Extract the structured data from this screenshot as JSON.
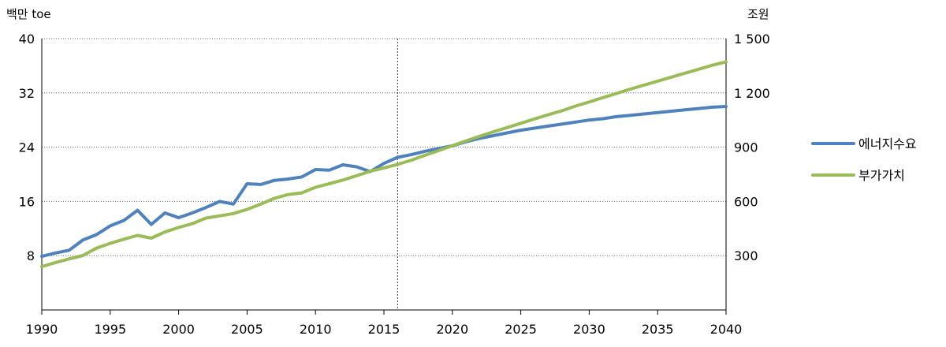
{
  "chart_data": {
    "type": "line",
    "title": "",
    "left_axis": {
      "label": "백만 toe",
      "ylim": [
        0,
        40
      ],
      "ticks": [
        8,
        16,
        24,
        32,
        40
      ]
    },
    "right_axis": {
      "label": "조원",
      "ylim": [
        0,
        1500
      ],
      "ticks": [
        "300",
        "600",
        "900",
        "1 200",
        "1 500"
      ]
    },
    "x_axis": {
      "xlim": [
        1990,
        2040
      ],
      "ticks": [
        1990,
        1995,
        2000,
        2005,
        2010,
        2015,
        2020,
        2025,
        2030,
        2035,
        2040
      ]
    },
    "grid": "horizontal-dotted",
    "reference_line_x": 2016,
    "legend_position": "right",
    "colors": {
      "energy": "#4f81bd",
      "value_added": "#9bbb59"
    },
    "series": [
      {
        "name": "에너지수요",
        "axis": "left",
        "color": "#4f81bd",
        "x": [
          1990,
          1991,
          1992,
          1993,
          1994,
          1995,
          1996,
          1997,
          1998,
          1999,
          2000,
          2001,
          2002,
          2003,
          2004,
          2005,
          2006,
          2007,
          2008,
          2009,
          2010,
          2011,
          2012,
          2013,
          2014,
          2015,
          2016,
          2017,
          2018,
          2019,
          2020,
          2021,
          2022,
          2023,
          2024,
          2025,
          2026,
          2027,
          2028,
          2029,
          2030,
          2031,
          2032,
          2033,
          2034,
          2035,
          2036,
          2037,
          2038,
          2039,
          2040
        ],
        "y": [
          7.9,
          8.4,
          8.8,
          10.3,
          11.1,
          12.4,
          13.2,
          14.7,
          12.6,
          14.3,
          13.6,
          14.3,
          15.1,
          16.0,
          15.6,
          18.6,
          18.5,
          19.1,
          19.3,
          19.6,
          20.7,
          20.6,
          21.4,
          21.1,
          20.4,
          21.6,
          22.5,
          22.9,
          23.4,
          23.8,
          24.2,
          24.8,
          25.3,
          25.7,
          26.1,
          26.5,
          26.8,
          27.1,
          27.4,
          27.7,
          28.0,
          28.2,
          28.5,
          28.7,
          28.9,
          29.1,
          29.3,
          29.5,
          29.7,
          29.9,
          30.0
        ]
      },
      {
        "name": "부가가치",
        "axis": "right",
        "color": "#9bbb59",
        "x": [
          1990,
          1991,
          1992,
          1993,
          1994,
          1995,
          1996,
          1997,
          1998,
          1999,
          2000,
          2001,
          2002,
          2003,
          2004,
          2005,
          2006,
          2007,
          2008,
          2009,
          2010,
          2011,
          2012,
          2013,
          2014,
          2015,
          2016,
          2017,
          2018,
          2019,
          2020,
          2021,
          2022,
          2023,
          2024,
          2025,
          2026,
          2027,
          2028,
          2029,
          2030,
          2031,
          2032,
          2033,
          2034,
          2035,
          2036,
          2037,
          2038,
          2039,
          2040
        ],
        "y": [
          240,
          262,
          282,
          301,
          342,
          368,
          391,
          412,
          397,
          431,
          456,
          477,
          508,
          520,
          533,
          556,
          585,
          617,
          638,
          647,
          678,
          698,
          718,
          742,
          767,
          785,
          805,
          828,
          855,
          881,
          908,
          935,
          960,
          985,
          1008,
          1032,
          1056,
          1079,
          1101,
          1127,
          1150,
          1174,
          1197,
          1221,
          1243,
          1265,
          1287,
          1309,
          1331,
          1353,
          1372
        ]
      }
    ]
  }
}
